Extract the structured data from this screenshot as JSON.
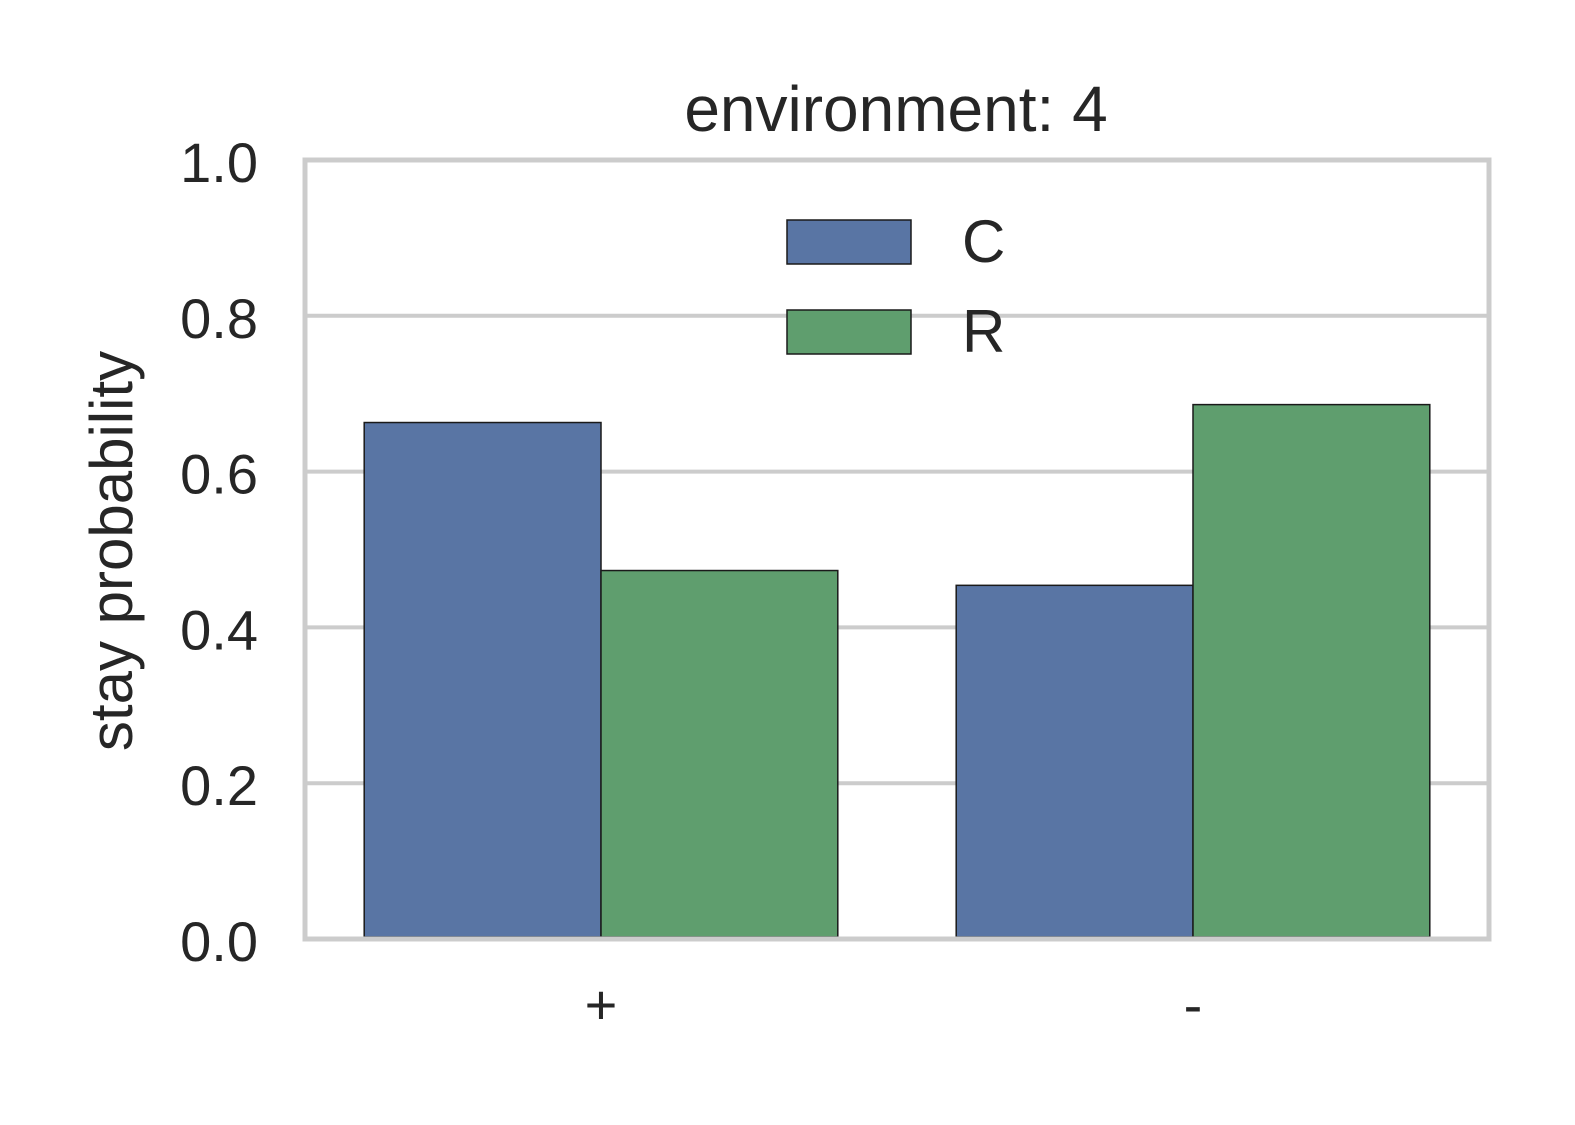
{
  "chart_data": {
    "type": "bar",
    "title": "environment: 4",
    "xlabel": "",
    "ylabel": "stay probability",
    "ylim": [
      0,
      1.0
    ],
    "yticks": [
      "0.0",
      "0.2",
      "0.4",
      "0.6",
      "0.8",
      "1.0"
    ],
    "categories": [
      "+",
      "-"
    ],
    "series": [
      {
        "name": "C",
        "color": "#5975a4",
        "values": [
          0.663,
          0.454
        ]
      },
      {
        "name": "R",
        "color": "#5f9e6e",
        "values": [
          0.473,
          0.686
        ]
      }
    ],
    "grid": true,
    "legend_position": "top-center"
  }
}
